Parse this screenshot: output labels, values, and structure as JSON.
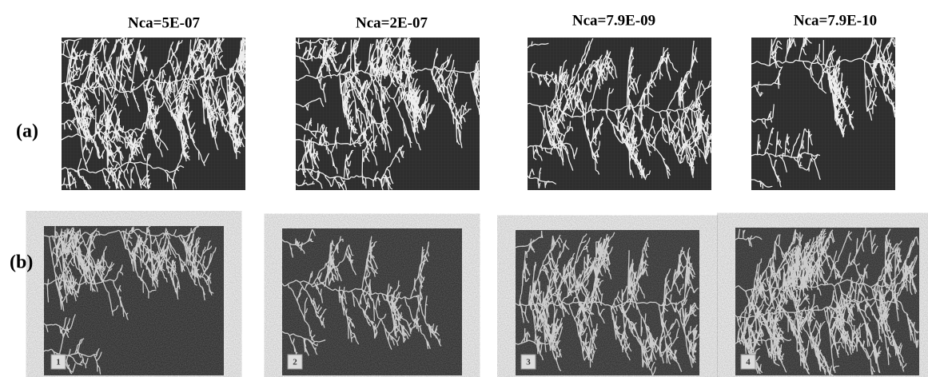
{
  "columns": [
    "Nca=5E-07",
    "Nca=2E-07",
    "Nca=7.9E-09",
    "Nca=7.9E-10"
  ],
  "rows": [
    "(a)",
    "(b)"
  ],
  "panel_numbers": [
    "1",
    "2",
    "3",
    "4"
  ]
}
